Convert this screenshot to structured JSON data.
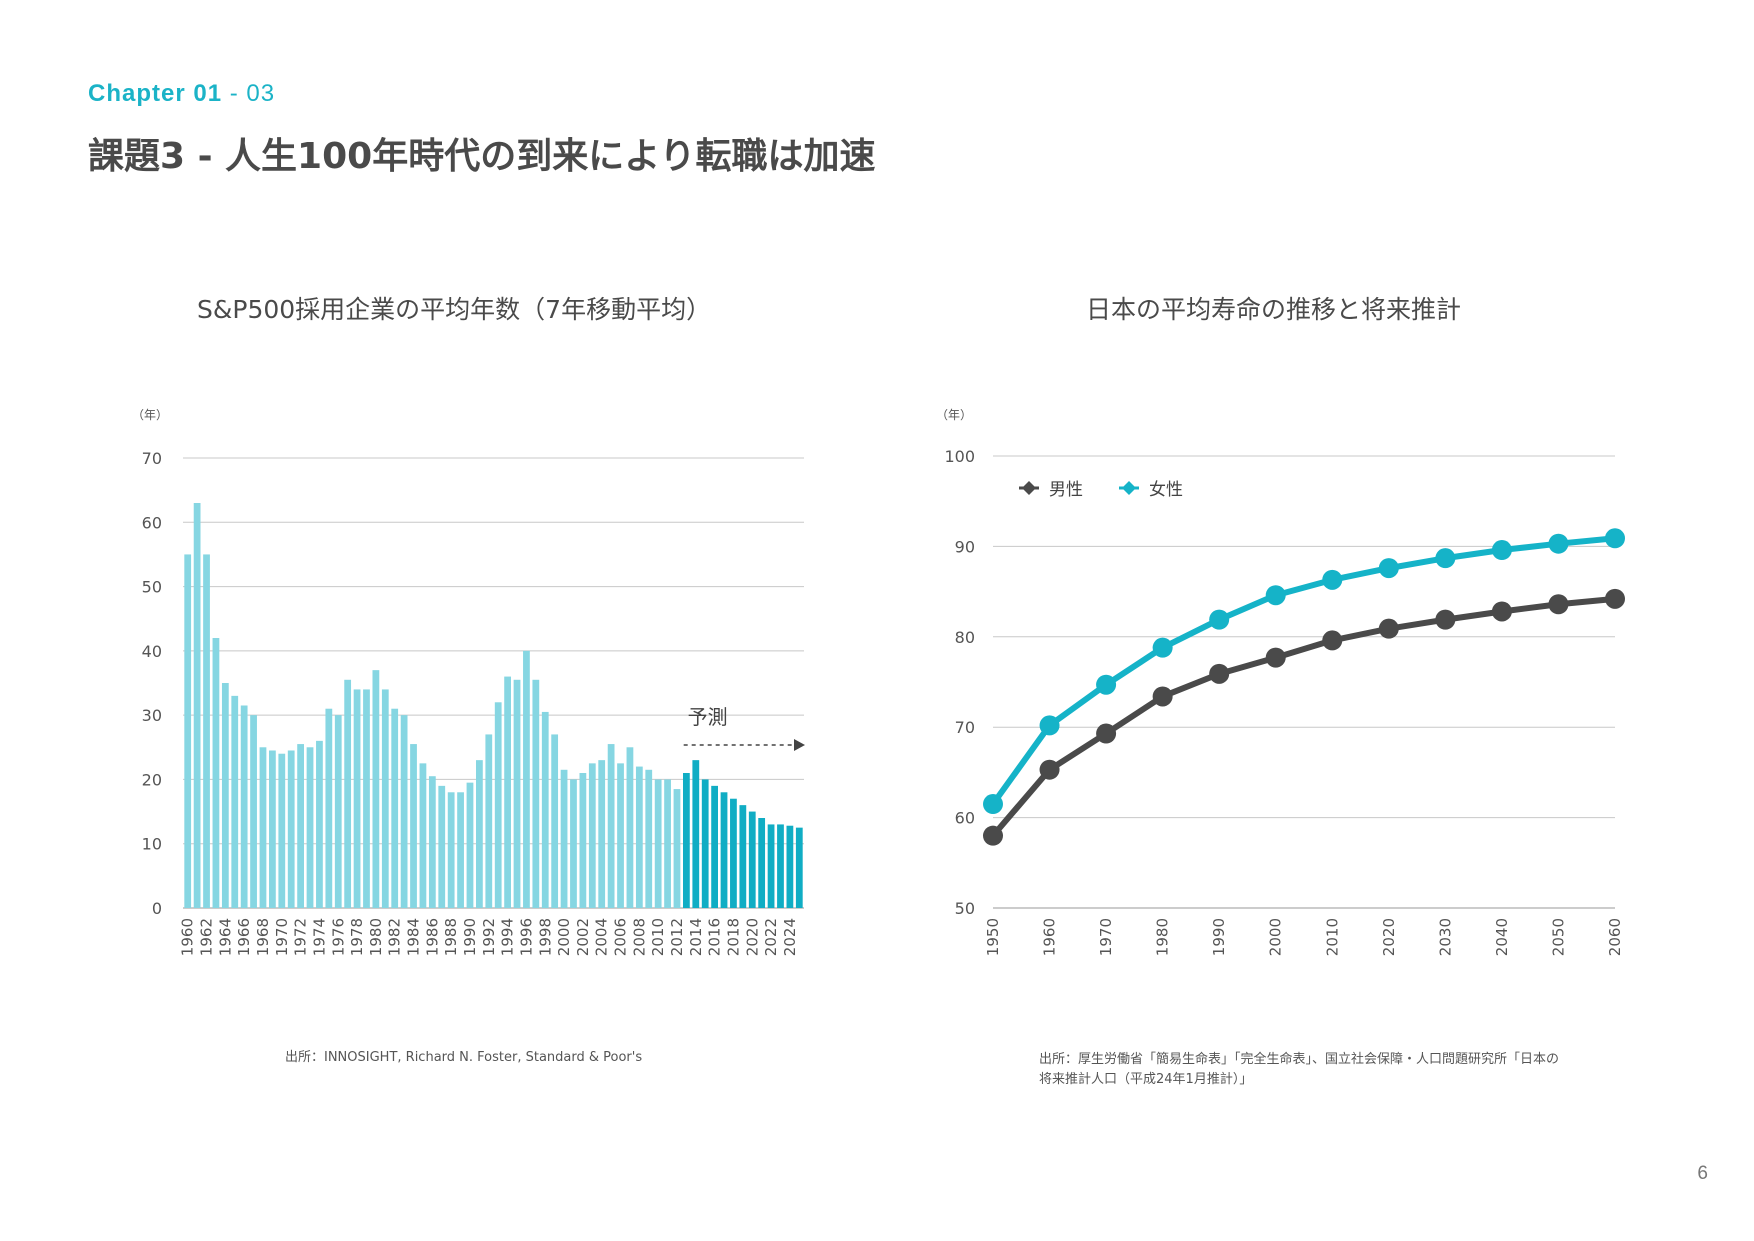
{
  "header": {
    "chapter_label": "Chapter 01",
    "chapter_sep": " - ",
    "chapter_num": "03",
    "title": "課題3 - 人生100年時代の到来により転職は加速"
  },
  "page_number": "6",
  "colors": {
    "accent": "#1bb3c7",
    "bar_actual": "#86d6e2",
    "bar_forecast": "#10adc4",
    "male": "#4a4a4a",
    "female": "#15b3c8",
    "grid": "#c8c8c8"
  },
  "left_chart": {
    "title": "S&P500採用企業の平均年数（7年移動平均）",
    "unit": "（年）",
    "forecast_label": "予測",
    "source": "出所：INNOSIGHT, Richard N. Foster, Standard & Poor's"
  },
  "right_chart": {
    "title": "日本の平均寿命の推移と将来推計",
    "unit": "（年）",
    "source_line1": "出所：厚生労働省「簡易生命表」「完全生命表」、国立社会保障・人口問題研究所「日本の",
    "source_line2": "将来推計人口（平成24年1月推計）」"
  },
  "chart_data": [
    {
      "type": "bar",
      "title": "S&P500採用企業の平均年数（7年移動平均）",
      "ylabel": "（年）",
      "ylim": [
        0,
        70
      ],
      "yticks": [
        0,
        10,
        20,
        30,
        40,
        50,
        60,
        70
      ],
      "categories": [
        1960,
        1961,
        1962,
        1963,
        1964,
        1965,
        1966,
        1967,
        1968,
        1969,
        1970,
        1971,
        1972,
        1973,
        1974,
        1975,
        1976,
        1977,
        1978,
        1979,
        1980,
        1981,
        1982,
        1983,
        1984,
        1985,
        1986,
        1987,
        1988,
        1989,
        1990,
        1991,
        1992,
        1993,
        1994,
        1995,
        1996,
        1997,
        1998,
        1999,
        2000,
        2001,
        2002,
        2003,
        2004,
        2005,
        2006,
        2007,
        2008,
        2009,
        2010,
        2011,
        2012,
        2013,
        2014,
        2015,
        2016,
        2017,
        2018,
        2019,
        2020,
        2021,
        2022,
        2023,
        2024,
        2025
      ],
      "values": [
        55,
        63,
        55,
        42,
        35,
        33,
        31.5,
        30,
        25,
        24.5,
        24,
        24.5,
        25.5,
        25,
        26,
        31,
        30,
        35.5,
        34,
        34,
        37,
        34,
        31,
        30,
        25.5,
        22.5,
        20.5,
        19,
        18,
        18,
        19.5,
        23,
        27,
        32,
        36,
        35.5,
        40,
        35.5,
        30.5,
        27,
        21.5,
        20,
        21,
        22.5,
        23,
        25.5,
        22.5,
        25,
        22,
        21.5,
        20,
        20,
        18.5,
        21,
        23,
        20,
        19,
        18,
        17,
        16,
        15,
        14,
        13,
        13,
        12.8,
        12.5
      ],
      "forecast_from": 2013,
      "xtick_labels": [
        "1960",
        "1962",
        "1964",
        "1966",
        "1968",
        "1970",
        "1972",
        "1974",
        "1976",
        "1978",
        "1980",
        "1982",
        "1984",
        "1986",
        "1988",
        "1990",
        "1992",
        "1994",
        "1996",
        "1998",
        "2000",
        "2002",
        "2004",
        "2006",
        "2008",
        "2010",
        "2012",
        "2014",
        "2016",
        "2018",
        "2020",
        "2022",
        "2024"
      ],
      "annotation": "予測"
    },
    {
      "type": "line",
      "title": "日本の平均寿命の推移と将来推計",
      "ylabel": "（年）",
      "ylim": [
        50,
        100
      ],
      "yticks": [
        50,
        60,
        70,
        80,
        90,
        100
      ],
      "x": [
        "1950",
        "1960",
        "1970",
        "1980",
        "1990",
        "2000",
        "2010",
        "2020",
        "2030",
        "2040",
        "2050",
        "2060"
      ],
      "series": [
        {
          "name": "男性",
          "values": [
            58,
            65.3,
            69.3,
            73.4,
            75.9,
            77.7,
            79.6,
            80.9,
            81.9,
            82.8,
            83.6,
            84.2
          ]
        },
        {
          "name": "女性",
          "values": [
            61.5,
            70.2,
            74.7,
            78.8,
            81.9,
            84.6,
            86.3,
            87.6,
            88.7,
            89.6,
            90.3,
            90.9
          ]
        }
      ],
      "legend": "top-left"
    }
  ]
}
